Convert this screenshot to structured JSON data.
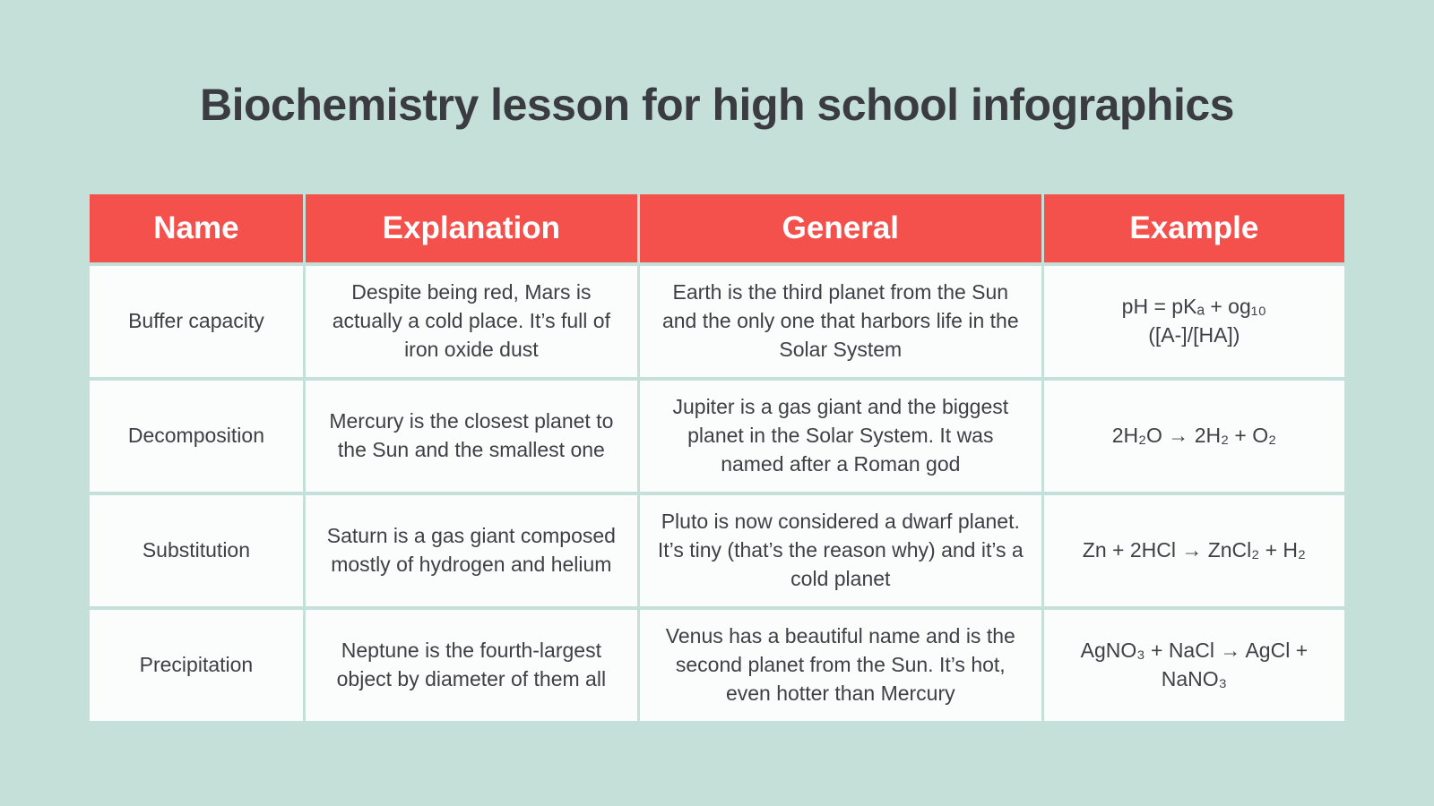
{
  "page": {
    "title": "Biochemistry lesson for high school infographics",
    "background_color": "#c5e0d9",
    "title_color": "#3b3b42"
  },
  "table": {
    "header_bg": "#f4514d",
    "header_text_color": "#ffffff",
    "cell_bg": "#fbfdfc",
    "cell_text_color": "#3f4045",
    "columns": [
      "Name",
      "Explanation",
      "General",
      "Example"
    ],
    "rows": [
      {
        "name": "Buffer capacity",
        "explanation": "Despite being red, Mars is actually a cold place. It’s full of iron oxide dust",
        "general": "Earth is the third planet from the Sun and the only one that harbors life in the Solar System",
        "example": "pH = pKₐ + og₁₀\n([A-]/[HA])"
      },
      {
        "name": "Decomposition",
        "explanation": "Mercury is the closest planet to the Sun and the smallest one",
        "general": "Jupiter is a gas giant and the biggest planet in the Solar System. It was named after a Roman god",
        "example": "2H₂O → 2H₂ + O₂"
      },
      {
        "name": "Substitution",
        "explanation": "Saturn is a gas giant composed mostly of hydrogen and helium",
        "general": "Pluto is now considered a dwarf planet. It’s tiny (that’s the reason why) and it’s a cold planet",
        "example": "Zn + 2HCl → ZnCl₂ + H₂"
      },
      {
        "name": "Precipitation",
        "explanation": "Neptune is the fourth-largest object by diameter of them all",
        "general": "Venus has a beautiful name and is the second planet from the Sun. It’s hot, even hotter than Mercury",
        "example": "AgNO₃ + NaCl → AgCl + NaNO₃"
      }
    ]
  }
}
